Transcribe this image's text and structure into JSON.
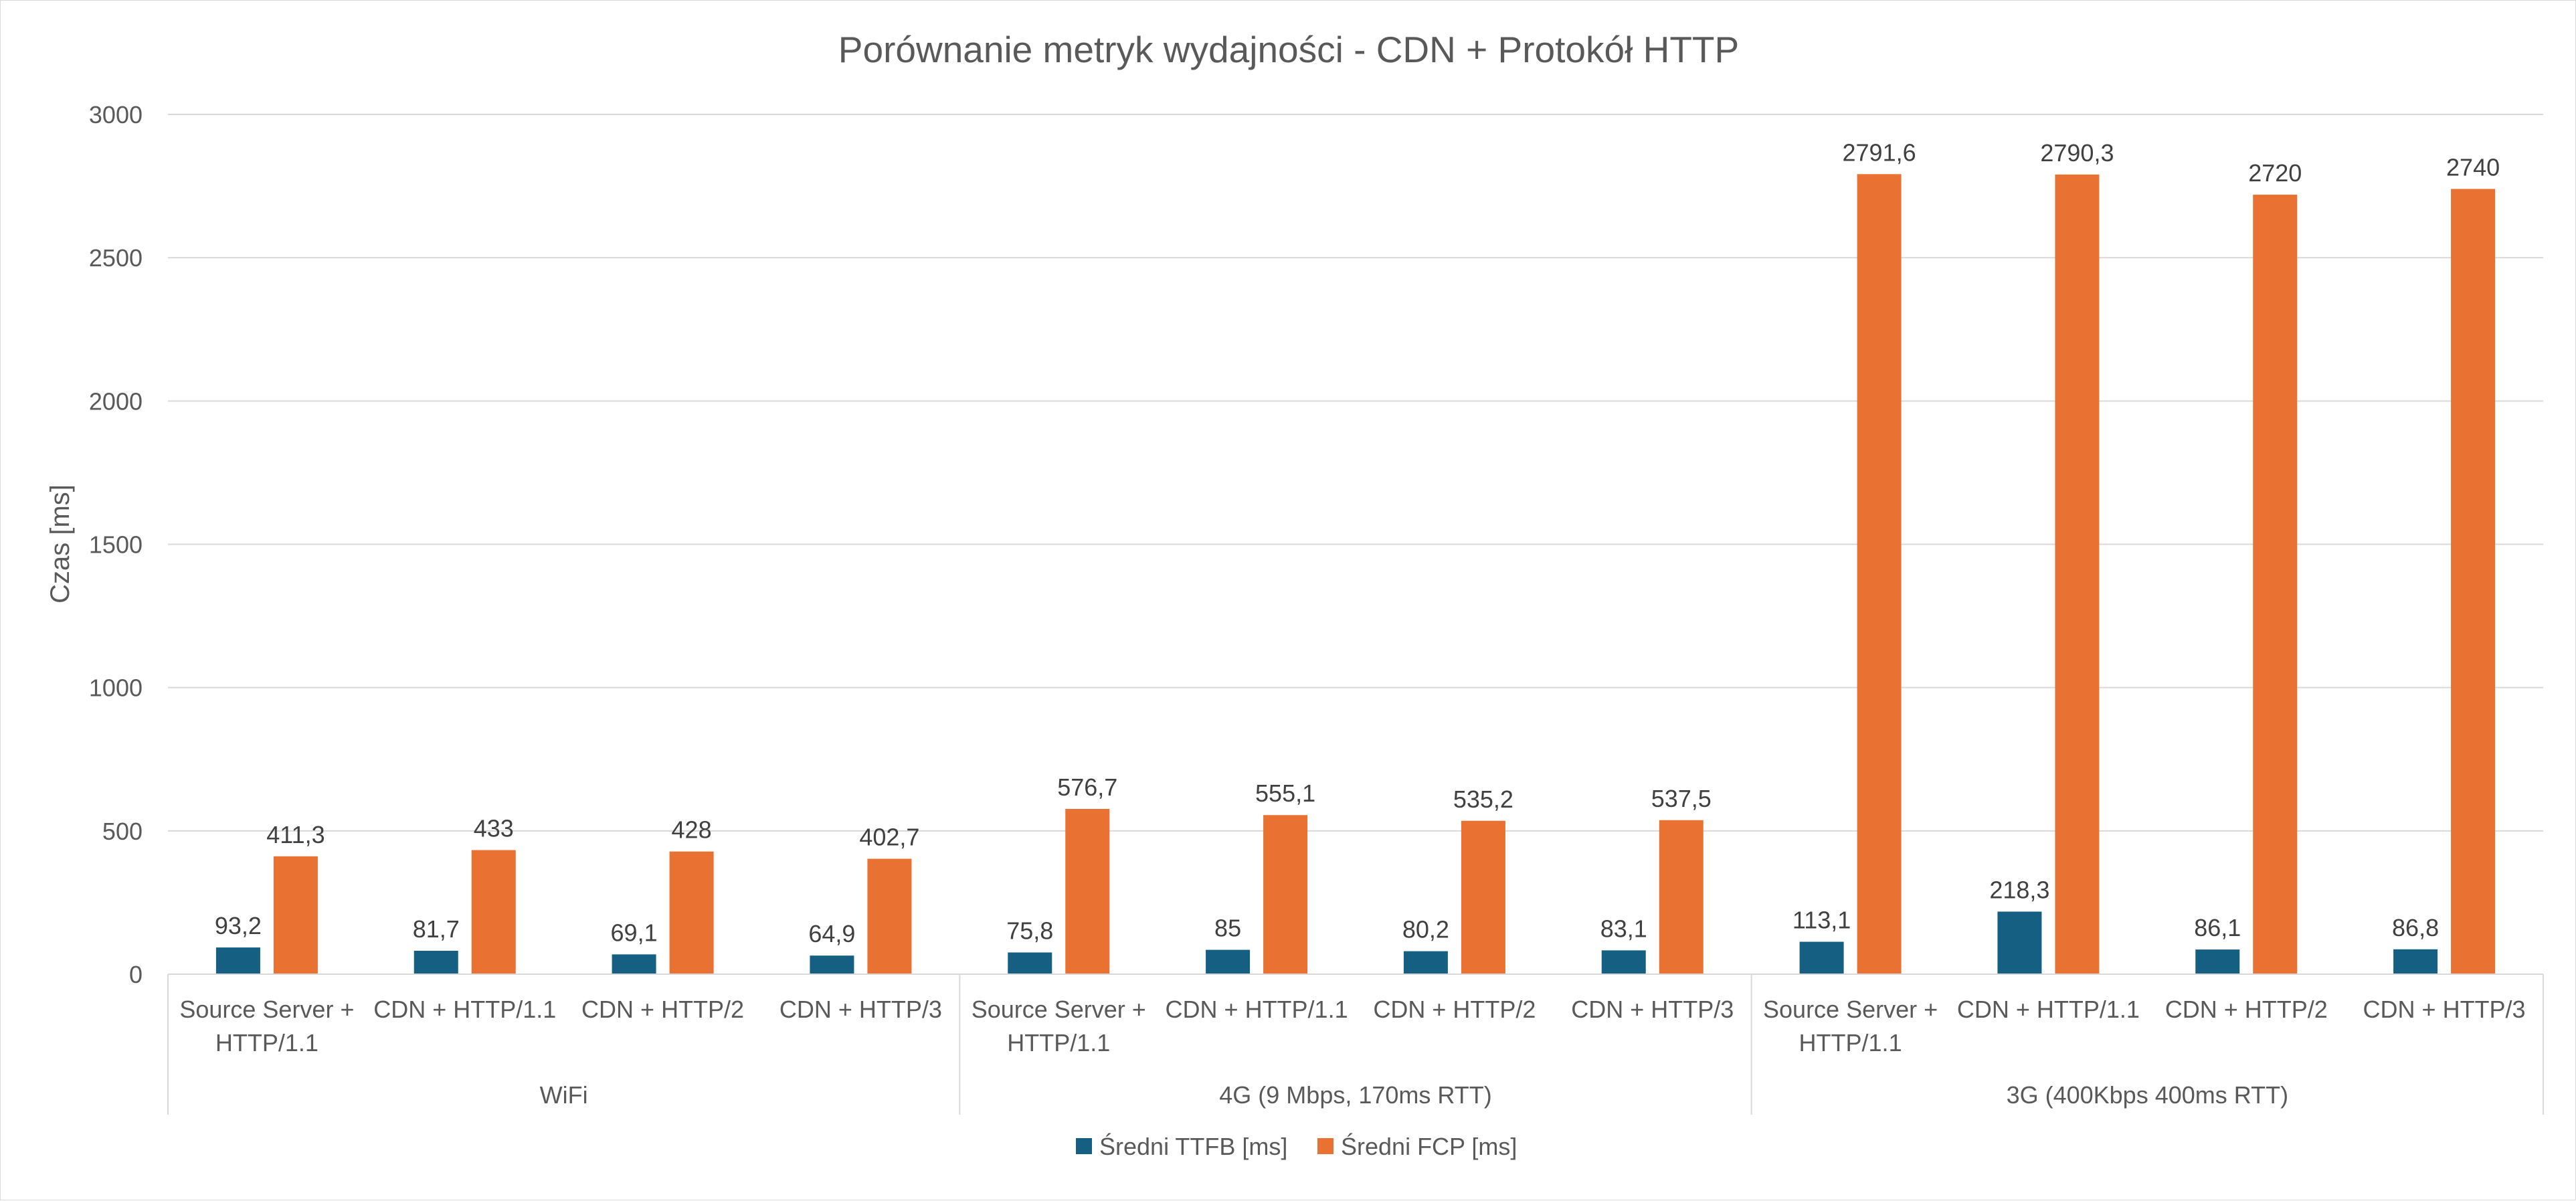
{
  "chart_data": {
    "type": "bar",
    "title": "Porównanie metryk wydajności - CDN + Protokół HTTP",
    "xlabel": "",
    "ylabel": "Czas [ms]",
    "ylim": [
      0,
      3000
    ],
    "yticks": [
      "0",
      "500",
      "1000",
      "1500",
      "2000",
      "2500",
      "3000"
    ],
    "grid": true,
    "legend_position": "bottom",
    "groups": [
      {
        "label": "WiFi",
        "categories": [
          "Source Server +\nHTTP/1.1",
          "CDN + HTTP/1.1",
          "CDN + HTTP/2",
          "CDN + HTTP/3"
        ]
      },
      {
        "label": "4G (9 Mbps, 170ms RTT)",
        "categories": [
          "Source Server +\nHTTP/1.1",
          "CDN + HTTP/1.1",
          "CDN + HTTP/2",
          "CDN + HTTP/3"
        ]
      },
      {
        "label": "3G (400Kbps 400ms RTT)",
        "categories": [
          "Source Server +\nHTTP/1.1",
          "CDN + HTTP/1.1",
          "CDN + HTTP/2",
          "CDN + HTTP/3"
        ]
      }
    ],
    "series": [
      {
        "name": "Średni TTFB [ms]",
        "color": "#156082",
        "values": [
          93.2,
          81.7,
          69.1,
          64.9,
          75.8,
          85,
          80.2,
          83.1,
          113.1,
          218.3,
          86.1,
          86.8
        ],
        "labels": [
          "93,2",
          "81,7",
          "69,1",
          "64,9",
          "75,8",
          "85",
          "80,2",
          "83,1",
          "113,1",
          "218,3",
          "86,1",
          "86,8"
        ]
      },
      {
        "name": "Średni FCP [ms]",
        "color": "#E97132",
        "values": [
          411.3,
          433,
          428,
          402.7,
          576.7,
          555.1,
          535.2,
          537.5,
          2791.6,
          2790.3,
          2720,
          2740
        ],
        "labels": [
          "411,3",
          "433",
          "428",
          "402,7",
          "576,7",
          "555,1",
          "535,2",
          "537,5",
          "2791,6",
          "2790,3",
          "2720",
          "2740"
        ]
      }
    ]
  }
}
